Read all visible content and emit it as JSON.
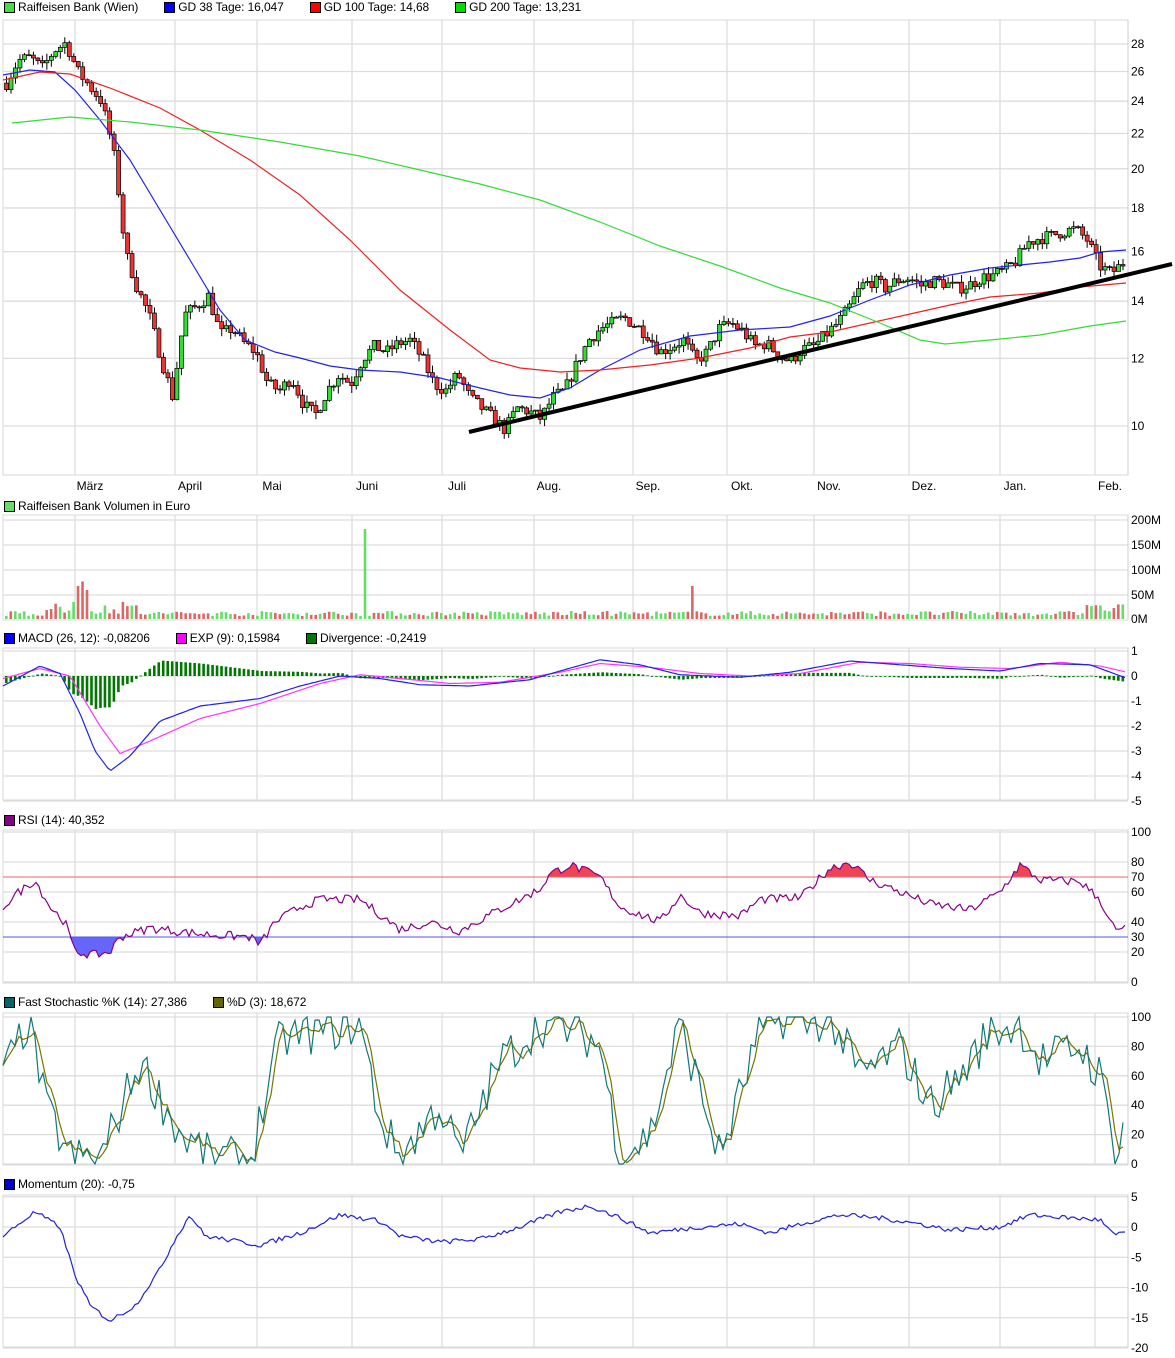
{
  "chart_data": [
    {
      "panel": "price",
      "type": "candlestick",
      "title": "Raiffeisen Bank (Wien)",
      "legend": [
        {
          "label": "Raiffeisen Bank (Wien)",
          "color": "#44dd44"
        },
        {
          "label": "GD 38 Tage: 16,047",
          "color": "#0000ff"
        },
        {
          "label": "GD 100 Tage: 14,68",
          "color": "#ff0000"
        },
        {
          "label": "GD 200 Tage: 13,231",
          "color": "#00dd00"
        }
      ],
      "yscale": "log",
      "ylim": [
        9,
        29
      ],
      "yticks": [
        10,
        12,
        14,
        16,
        18,
        20,
        22,
        24,
        26,
        28
      ],
      "xlabels": [
        "März",
        "April",
        "Mai",
        "Juni",
        "Juli",
        "Aug.",
        "Sep.",
        "Okt.",
        "Nov.",
        "Dez.",
        "Jan.",
        "Feb."
      ],
      "series": [
        {
          "name": "Close (approx.)",
          "values": [
            25.2,
            26.8,
            27.0,
            26.2,
            27.5,
            28.1,
            26.0,
            25.0,
            24.0,
            21.0,
            16.0,
            14.5,
            13.5,
            12.0,
            10.8,
            13.5,
            13.8,
            14.2,
            12.8,
            13.0,
            12.5,
            12.2,
            11.2,
            11.0,
            11.4,
            10.6,
            10.3,
            11.0,
            11.5,
            11.2,
            12.0,
            12.4,
            12.2,
            12.5,
            12.6,
            12.0,
            11.2,
            11.0,
            11.5,
            10.8,
            10.5,
            10.2,
            9.9,
            10.5,
            10.4,
            10.2,
            10.8,
            11.0,
            11.8,
            12.6,
            13.0,
            13.2,
            13.4,
            13.1,
            12.8,
            12.2,
            12.4,
            12.6,
            11.9,
            12.2,
            13.0,
            13.2,
            12.9,
            12.4,
            12.5,
            12.1,
            11.9,
            12.3,
            12.4,
            12.8,
            13.2,
            13.8,
            14.6,
            14.8,
            14.5,
            14.8,
            14.9,
            14.6,
            14.8,
            14.7,
            14.5,
            14.6,
            14.9,
            15.0,
            15.2,
            15.6,
            16.4,
            16.6,
            16.7,
            16.9,
            17.0,
            16.5,
            15.4,
            15.1,
            15.5
          ]
        },
        {
          "name": "GD 38 Tage",
          "final": 16.047
        },
        {
          "name": "GD 100 Tage",
          "final": 14.68
        },
        {
          "name": "GD 200 Tage",
          "final": 13.231
        }
      ],
      "annotations": [
        {
          "type": "trendline",
          "from": {
            "x": "Juli",
            "y": 9.8
          },
          "to": {
            "x": "Feb.",
            "y": 15.3
          },
          "color": "#000000"
        }
      ]
    },
    {
      "panel": "volume",
      "type": "bar",
      "title": "Raiffeisen Bank Volumen in Euro",
      "yticks": [
        "0M",
        "50M",
        "100M",
        "150M",
        "200M"
      ],
      "ylim": [
        0,
        200
      ],
      "unit": "M EUR",
      "notable": [
        {
          "x": "Juni",
          "value": 180
        },
        {
          "x": "Sep.",
          "value": 65
        },
        {
          "x": "März",
          "value": 75
        }
      ]
    },
    {
      "panel": "macd",
      "type": "line",
      "legend": [
        {
          "label": "MACD (26, 12): -0,08206",
          "color": "#0000ff"
        },
        {
          "label": "EXP (9): 0,15984",
          "color": "#ff00ff"
        },
        {
          "label": "Divergence: -0,2419",
          "color": "#007700"
        }
      ],
      "yticks": [
        1,
        0,
        -1,
        -2,
        -3,
        -4,
        -5
      ],
      "ylim": [
        -5,
        1
      ],
      "values": {
        "macd_min": -3.8,
        "exp_min": -3.1
      }
    },
    {
      "panel": "rsi",
      "type": "line",
      "legend": [
        {
          "label": "RSI (14): 40,352",
          "color": "#880088"
        }
      ],
      "yticks": [
        0,
        20,
        40,
        60,
        80,
        100
      ],
      "ylim": [
        0,
        100
      ],
      "levels": [
        {
          "value": 70,
          "color": "#ff6666"
        },
        {
          "value": 30,
          "color": "#6666ff"
        }
      ]
    },
    {
      "panel": "stochastic",
      "type": "line",
      "legend": [
        {
          "label": "Fast Stochastic %K (14): 27,386",
          "color": "#006666"
        },
        {
          "label": "%D (3): 18,672",
          "color": "#666600"
        }
      ],
      "yticks": [
        0,
        20,
        40,
        60,
        80,
        100
      ],
      "ylim": [
        0,
        100
      ]
    },
    {
      "panel": "momentum",
      "type": "line",
      "legend": [
        {
          "label": "Momentum (20): -0,75",
          "color": "#0000cc"
        }
      ],
      "yticks": [
        5,
        0,
        -5,
        -10,
        -15,
        -20
      ],
      "ylim": [
        -20,
        5
      ]
    }
  ],
  "header": {
    "legend": [
      {
        "label": "Raiffeisen Bank (Wien)",
        "color": "#44dd44"
      },
      {
        "label": "GD 38 Tage: 16,047",
        "color": "#0000ff"
      },
      {
        "label": "GD 100 Tage: 14,68",
        "color": "#ff0000"
      },
      {
        "label": "GD 200 Tage: 13,231",
        "color": "#00dd00"
      }
    ]
  },
  "volume": {
    "legend": [
      {
        "label": "Raiffeisen Bank Volumen in Euro",
        "color": "#66dd66"
      }
    ]
  },
  "macd": {
    "legend": [
      {
        "label": "MACD (26, 12): -0,08206",
        "color": "#0000ff"
      },
      {
        "label": "EXP (9): 0,15984",
        "color": "#ff00ff"
      },
      {
        "label": "Divergence: -0,2419",
        "color": "#007700"
      }
    ]
  },
  "rsi": {
    "legend": [
      {
        "label": "RSI (14): 40,352",
        "color": "#880088"
      }
    ],
    "level_high": "70",
    "level_low": "30"
  },
  "stoch": {
    "legend": [
      {
        "label": "Fast Stochastic %K (14): 27,386",
        "color": "#006666"
      },
      {
        "label": "%D (3): 18,672",
        "color": "#666600"
      }
    ]
  },
  "momentum": {
    "legend": [
      {
        "label": "Momentum (20): -0,75",
        "color": "#0000cc"
      }
    ]
  },
  "axis": {
    "months": [
      "März",
      "April",
      "Mai",
      "Juni",
      "Juli",
      "Aug.",
      "Sep.",
      "Okt.",
      "Nov.",
      "Dez.",
      "Jan.",
      "Feb."
    ],
    "price_ticks": [
      "28",
      "26",
      "24",
      "22",
      "20",
      "18",
      "16",
      "14",
      "12",
      "10"
    ],
    "volume_ticks": [
      "200M",
      "150M",
      "100M",
      "50M",
      "0M"
    ],
    "macd_ticks": [
      "1",
      "0",
      "-1",
      "-2",
      "-3",
      "-4",
      "-5"
    ],
    "rsi_ticks": [
      "100",
      "80",
      "60",
      "40",
      "20",
      "0"
    ],
    "stoch_ticks": [
      "100",
      "80",
      "60",
      "40",
      "20",
      "0"
    ],
    "momentum_ticks": [
      "5",
      "0",
      "-5",
      "-10",
      "-15",
      "-20"
    ]
  }
}
